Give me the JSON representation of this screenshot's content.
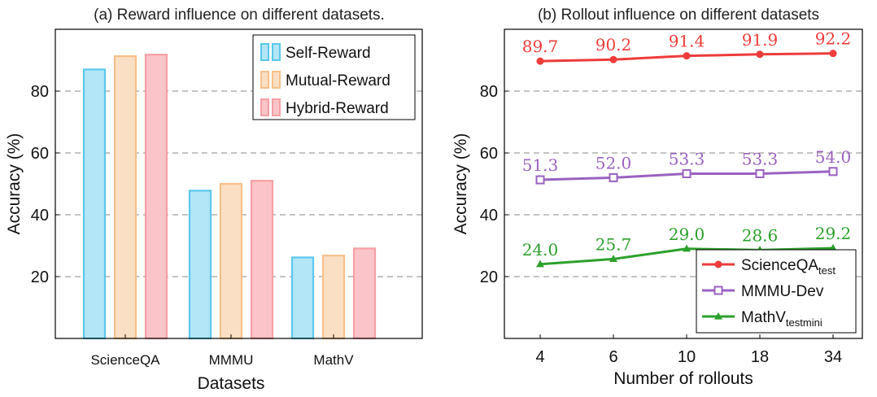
{
  "figure": {
    "panels": [
      {
        "title": "(a) Reward influence on different datasets.",
        "xlabel": "Datasets",
        "ylabel": "Accuracy (%)"
      },
      {
        "title": "(b) Rollout influence on different datasets",
        "xlabel": "Number of rollouts",
        "ylabel": "Accuracy (%)"
      }
    ]
  },
  "chart_data": [
    {
      "type": "bar",
      "title": "(a) Reward influence on different datasets.",
      "xlabel": "Datasets",
      "ylabel": "Accuracy (%)",
      "categories": [
        "ScienceQA",
        "MMMU",
        "MathV"
      ],
      "ylim": [
        0,
        100
      ],
      "yticks": [
        20,
        40,
        60,
        80
      ],
      "grid": "horizontal dashed",
      "legend_position": "top-right",
      "series": [
        {
          "name": "Self-Reward",
          "values": [
            87.0,
            47.8,
            26.2
          ],
          "color": "#5bc8ec",
          "fill": "#b3e6f6"
        },
        {
          "name": "Mutual-Reward",
          "values": [
            91.3,
            50.0,
            26.8
          ],
          "color": "#f6c08c",
          "fill": "#fbdfc4"
        },
        {
          "name": "Hybrid-Reward",
          "values": [
            91.8,
            51.0,
            29.1
          ],
          "color": "#f5a0a6",
          "fill": "#fbc4c8"
        }
      ]
    },
    {
      "type": "line",
      "title": "(b) Rollout influence on different datasets",
      "xlabel": "Number of rollouts",
      "ylabel": "Accuracy (%)",
      "x": [
        "4",
        "6",
        "10",
        "18",
        "34"
      ],
      "ylim": [
        0,
        100
      ],
      "yticks": [
        20,
        40,
        60,
        80
      ],
      "grid": "horizontal dashed",
      "legend_position": "bottom-right",
      "series": [
        {
          "name": "ScienceQA",
          "name_sub": "test",
          "marker": "circle",
          "color": "#ee3b3b",
          "values": [
            89.7,
            90.2,
            91.4,
            91.9,
            92.2
          ],
          "labels": [
            "89.7",
            "90.2",
            "91.4",
            "91.9",
            "92.2"
          ]
        },
        {
          "name": "MMMU-Dev",
          "name_sub": "",
          "marker": "square",
          "color": "#9a62c0",
          "values": [
            51.3,
            52.0,
            53.3,
            53.3,
            54.0
          ],
          "labels": [
            "51.3",
            "52.0",
            "53.3",
            "53.3",
            "54.0"
          ]
        },
        {
          "name": "MathV",
          "name_sub": "testmini",
          "marker": "triangle",
          "color": "#2ca02c",
          "values": [
            24.0,
            25.7,
            29.0,
            28.6,
            29.2
          ],
          "labels": [
            "24.0",
            "25.7",
            "29.0",
            "28.6",
            "29.2"
          ]
        }
      ]
    }
  ]
}
